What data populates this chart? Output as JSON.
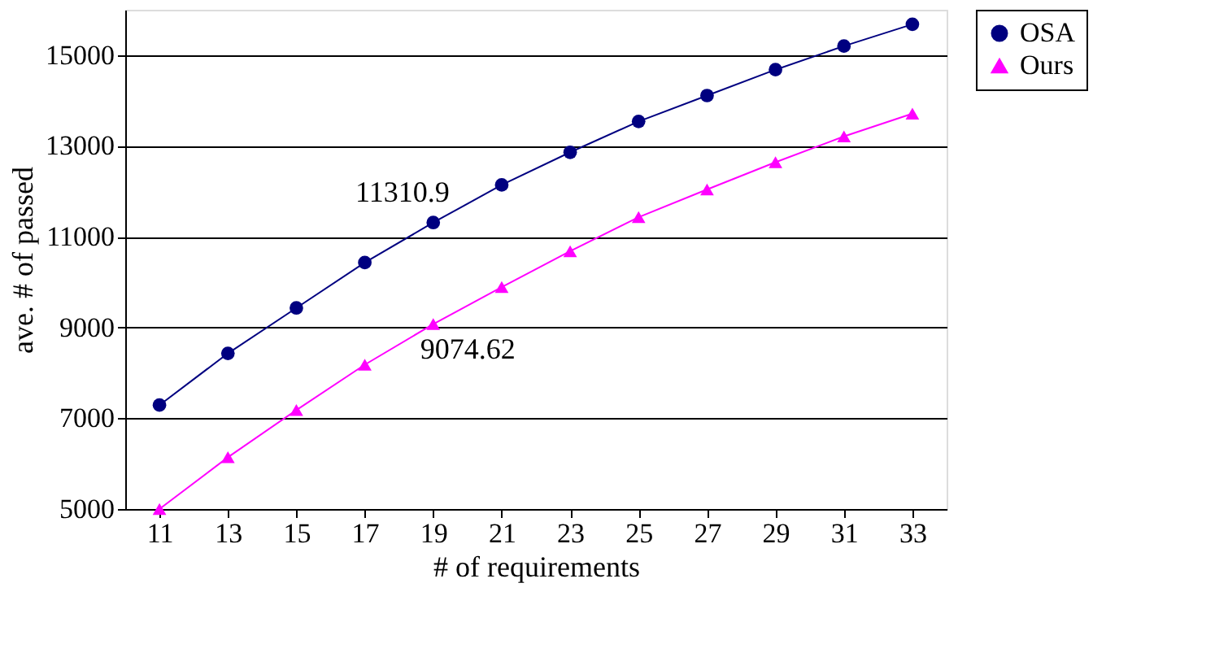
{
  "chart_data": {
    "type": "line",
    "xlabel": "# of requirements",
    "ylabel": "ave. # of passed",
    "categories": [
      "11",
      "13",
      "15",
      "17",
      "19",
      "21",
      "23",
      "25",
      "27",
      "29",
      "31",
      "33"
    ],
    "series": [
      {
        "name": "OSA",
        "color": "#000080",
        "marker": "circle",
        "values": [
          7290,
          8430,
          9430,
          10430,
          11310.9,
          12140,
          12860,
          13540,
          14110,
          14680,
          15200,
          15680
        ]
      },
      {
        "name": "Ours",
        "color": "#ff00ff",
        "marker": "triangle",
        "values": [
          5000,
          6140,
          7180,
          8180,
          9074.62,
          9890,
          10680,
          11430,
          12040,
          12640,
          13210,
          13710
        ]
      }
    ],
    "annotations": [
      {
        "text": "11310.9",
        "x": "19",
        "y": 11310.9
      },
      {
        "text": "9074.62",
        "x": "19",
        "y": 9074.62
      }
    ],
    "ylim": [
      5000,
      16000
    ],
    "yticks": [
      5000,
      7000,
      9000,
      11000,
      13000,
      15000
    ],
    "grid": "y",
    "legend": "right",
    "line_style": "solid"
  }
}
